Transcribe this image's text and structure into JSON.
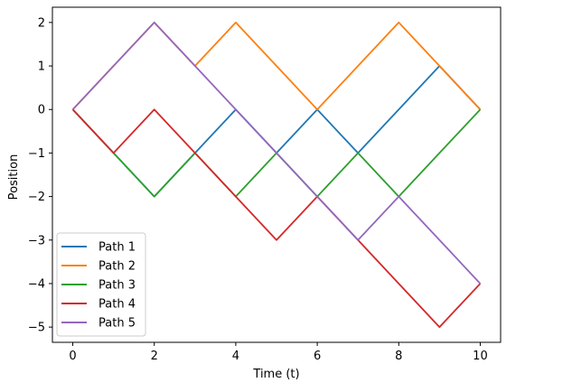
{
  "chart_data": {
    "type": "line",
    "xlabel": "Time (t)",
    "ylabel": "Position",
    "xlim": [
      -0.5,
      10.5
    ],
    "ylim": [
      -5.35,
      2.35
    ],
    "grid": false,
    "legend_position": "lower-left",
    "x": [
      0,
      1,
      2,
      3,
      4,
      5,
      6,
      7,
      8,
      9,
      10
    ],
    "xticks": [
      0,
      2,
      4,
      6,
      8,
      10
    ],
    "xtick_labels": [
      "0",
      "2",
      "4",
      "6",
      "8",
      "10"
    ],
    "yticks": [
      2,
      1,
      0,
      -1,
      -2,
      -3,
      -4,
      -5
    ],
    "ytick_labels": [
      "2",
      "1",
      "0",
      "−1",
      "−2",
      "−3",
      "−4",
      "−5"
    ],
    "series": [
      {
        "name": "Path 1",
        "color": "#1f77b4",
        "values": [
          0,
          -1,
          -2,
          -1,
          0,
          -1,
          0,
          -1,
          0,
          1,
          0
        ]
      },
      {
        "name": "Path 2",
        "color": "#ff7f0e",
        "values": [
          0,
          1,
          2,
          1,
          2,
          1,
          0,
          1,
          2,
          1,
          0
        ]
      },
      {
        "name": "Path 3",
        "color": "#2ca02c",
        "values": [
          0,
          -1,
          -2,
          -1,
          -2,
          -1,
          -2,
          -1,
          -2,
          -1,
          0
        ]
      },
      {
        "name": "Path 4",
        "color": "#d62728",
        "values": [
          0,
          -1,
          0,
          -1,
          -2,
          -3,
          -2,
          -3,
          -4,
          -5,
          -4
        ]
      },
      {
        "name": "Path 5",
        "color": "#9467bd",
        "values": [
          0,
          1,
          2,
          1,
          0,
          -1,
          -2,
          -3,
          -2,
          -3,
          -4
        ]
      }
    ]
  }
}
